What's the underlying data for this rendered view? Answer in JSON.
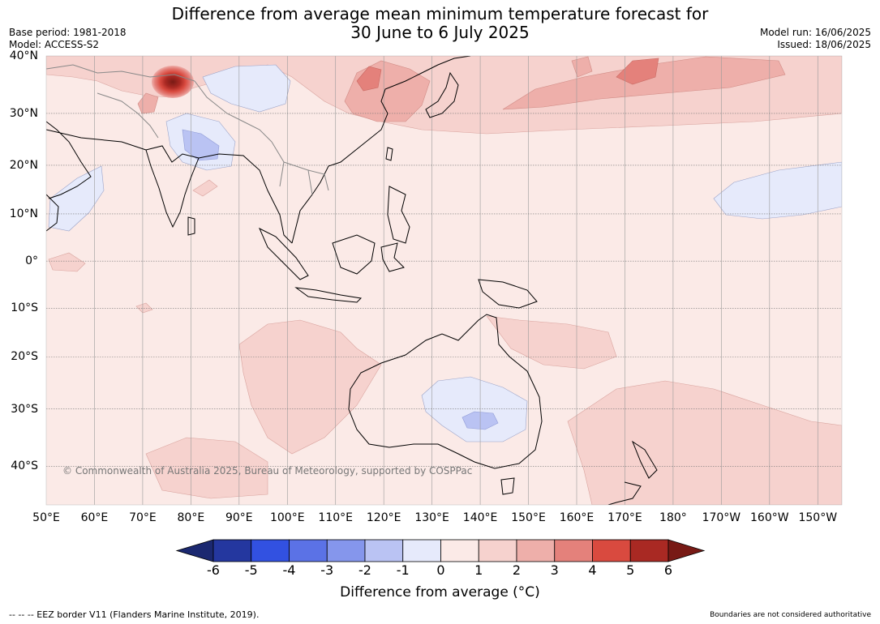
{
  "title_line1": "Difference from average mean minimum temperature forecast for",
  "title_line2": "30 June to 6 July 2025",
  "meta": {
    "base_period": "Base period: 1981-2018",
    "model": "Model: ACCESS-S2",
    "model_run": "Model run: 16/06/2025",
    "issued": "Issued: 18/06/2025"
  },
  "map": {
    "longitude_labels": [
      "50°E",
      "60°E",
      "70°E",
      "80°E",
      "90°E",
      "100°E",
      "110°E",
      "120°E",
      "130°E",
      "140°E",
      "150°E",
      "160°E",
      "170°E",
      "180°",
      "170°W",
      "160°W",
      "150°W"
    ],
    "latitude_labels": [
      "40°N",
      "30°N",
      "20°N",
      "10°N",
      "0°",
      "10°S",
      "20°S",
      "30°S",
      "40°S"
    ],
    "lon_range": [
      50,
      215
    ],
    "lat_range": [
      -46,
      40
    ],
    "background_color": "#fbeae7",
    "copyright": "© Commonwealth of Australia 2025, Bureau of Meteorology, supported by COSPPac"
  },
  "colorbar": {
    "ticks": [
      "-6",
      "-5",
      "-4",
      "-3",
      "-2",
      "-1",
      "0",
      "1",
      "2",
      "3",
      "4",
      "5",
      "6"
    ],
    "colors": [
      "#24379f",
      "#3251e1",
      "#5b72e6",
      "#8596ec",
      "#bac3f3",
      "#e6eafb",
      "#fbeae7",
      "#f6d2ce",
      "#eeafaa",
      "#e4817b",
      "#d94a3f",
      "#a92923"
    ],
    "under_color": "#1b2870",
    "over_color": "#781a15",
    "label": "Difference from average (°C)"
  },
  "footer": {
    "eez_note": "-- -- -- EEZ border V11 (Flanders Marine Institute, 2019).",
    "boundaries_note": "Boundaries are not considered authoritative"
  }
}
